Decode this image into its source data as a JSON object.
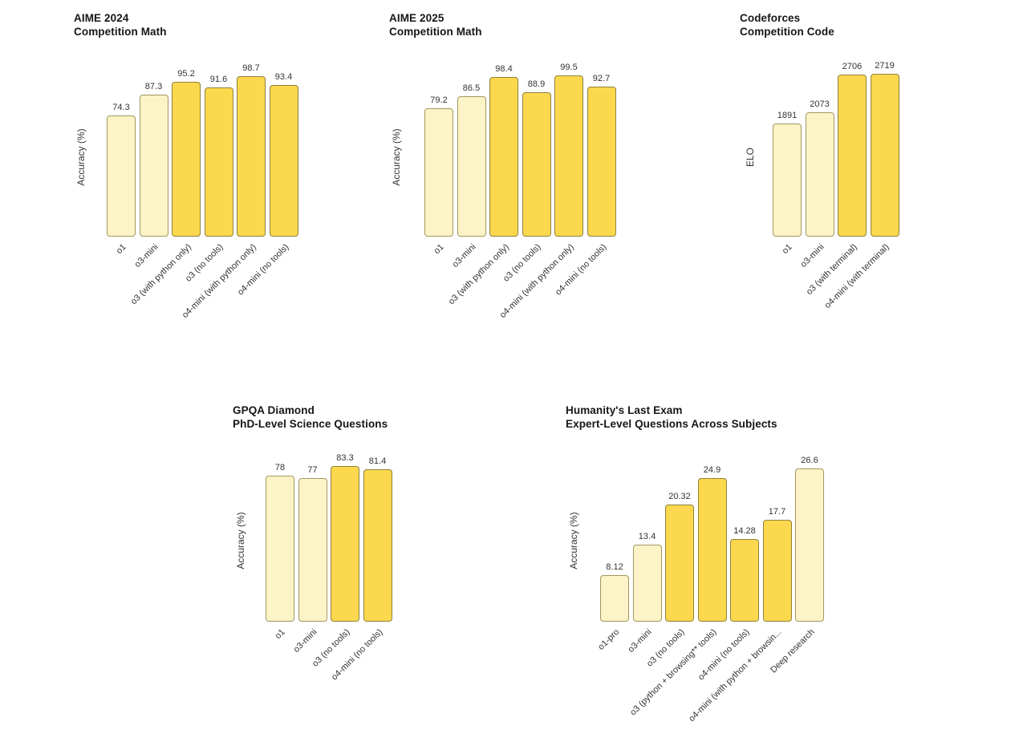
{
  "colors": {
    "bar_light": "#fcf4c7",
    "bar_dark": "#fbd84d",
    "bar_border": "#8b8147",
    "title_text": "#161616",
    "label_text": "#333333"
  },
  "chart_data": [
    {
      "type": "bar",
      "title": "AIME 2024",
      "subtitle": "Competition Math",
      "ylabel": "Accuracy (%)",
      "categories": [
        "o1",
        "o3-mini",
        "o3 (with python only)",
        "o3 (no tools)",
        "o4-mini (with python only)",
        "o4-mini (no tools)"
      ],
      "values": [
        74.3,
        87.3,
        95.2,
        91.6,
        98.7,
        93.4
      ],
      "shades": [
        "light",
        "light",
        "dark",
        "dark",
        "dark",
        "dark"
      ],
      "ylim": [
        0,
        100
      ],
      "grid": false,
      "legend": "none"
    },
    {
      "type": "bar",
      "title": "AIME 2025",
      "subtitle": "Competition Math",
      "ylabel": "Accuracy (%)",
      "categories": [
        "o1",
        "o3-mini",
        "o3 (with python only)",
        "o3 (no tools)",
        "o4-mini (with python only)",
        "o4-mini (no tools)"
      ],
      "values": [
        79.2,
        86.5,
        98.4,
        88.9,
        99.5,
        92.7
      ],
      "shades": [
        "light",
        "light",
        "dark",
        "dark",
        "dark",
        "dark"
      ],
      "ylim": [
        0,
        100
      ],
      "grid": false,
      "legend": "none"
    },
    {
      "type": "bar",
      "title": "Codeforces",
      "subtitle": "Competition Code",
      "ylabel": "ELO",
      "categories": [
        "o1",
        "o3-mini",
        "o3 (with terminal)",
        "o4-mini (with terminal)"
      ],
      "values": [
        1891,
        2073,
        2706,
        2719
      ],
      "shades": [
        "light",
        "light",
        "dark",
        "dark"
      ],
      "ylim": [
        0,
        2719
      ],
      "grid": false,
      "legend": "none"
    },
    {
      "type": "bar",
      "title": "GPQA Diamond",
      "subtitle": "PhD-Level Science Questions",
      "ylabel": "Accuracy (%)",
      "categories": [
        "o1",
        "o3-mini",
        "o3 (no tools)",
        "o4-mini (no tools)"
      ],
      "values": [
        78,
        77,
        83.3,
        81.4
      ],
      "shades": [
        "light",
        "light",
        "dark",
        "dark"
      ],
      "ylim": [
        0,
        100
      ],
      "grid": false,
      "legend": "none"
    },
    {
      "type": "bar",
      "title": "Humanity's Last Exam",
      "subtitle": "Expert-Level Questions Across Subjects",
      "ylabel": "Accuracy (%)",
      "categories": [
        "o1-pro",
        "o3-mini",
        "o3 (no tools)",
        "o3 (python + browsing** tools)",
        "o4-mini (no tools)",
        "o4-mini (with python + browsin...",
        "Deep research"
      ],
      "values": [
        8.12,
        13.4,
        20.32,
        24.9,
        14.28,
        17.7,
        26.6
      ],
      "shades": [
        "light",
        "light",
        "dark",
        "dark",
        "dark",
        "dark",
        "light"
      ],
      "ylim": [
        0,
        27
      ],
      "grid": false,
      "legend": "none"
    }
  ]
}
